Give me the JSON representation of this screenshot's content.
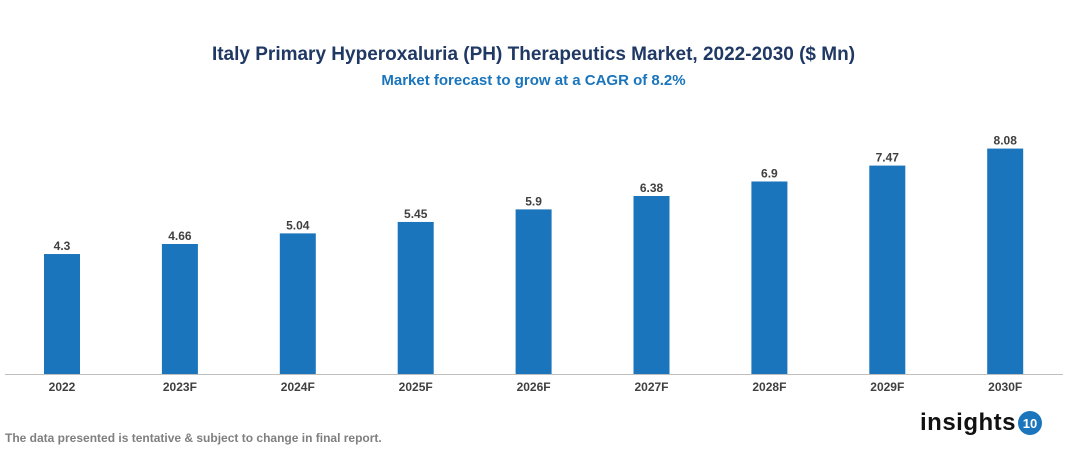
{
  "chart_data": {
    "type": "bar",
    "title": "Italy Primary Hyperoxaluria (PH) Therapeutics Market, 2022-2030 ($ Mn)",
    "subtitle": "Market forecast to grow at a CAGR of 8.2%",
    "categories": [
      "2022",
      "2023F",
      "2024F",
      "2025F",
      "2026F",
      "2027F",
      "2028F",
      "2029F",
      "2030F"
    ],
    "values": [
      4.3,
      4.66,
      5.04,
      5.45,
      5.9,
      6.38,
      6.9,
      7.47,
      8.08
    ],
    "xlabel": "",
    "ylabel": "",
    "grid": false,
    "bar_color": "#1a75bc"
  },
  "footer": {
    "note": "The data presented is tentative & subject to change in final report.",
    "logo_text": "insights",
    "logo_badge": "10"
  }
}
